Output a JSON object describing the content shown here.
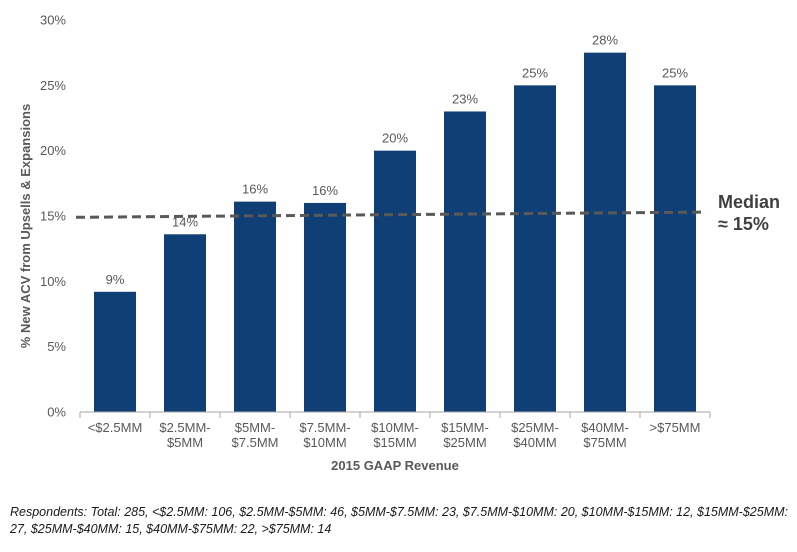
{
  "chart_data": {
    "type": "bar",
    "categories": [
      [
        "<$2.5MM"
      ],
      [
        "$2.5MM-",
        "$5MM"
      ],
      [
        "$5MM-",
        "$7.5MM"
      ],
      [
        "$7.5MM-",
        "$10MM"
      ],
      [
        "$10MM-",
        "$15MM"
      ],
      [
        "$15MM-",
        "$25MM"
      ],
      [
        "$25MM-",
        "$40MM"
      ],
      [
        "$40MM-",
        "$75MM"
      ],
      [
        ">$75MM"
      ]
    ],
    "values": [
      9.2,
      13.6,
      16.1,
      16.0,
      20.0,
      23.0,
      25.0,
      27.5,
      25.0
    ],
    "data_labels": [
      "9%",
      "14%",
      "16%",
      "16%",
      "20%",
      "23%",
      "25%",
      "28%",
      "25%"
    ],
    "xlabel": "2015 GAAP Revenue",
    "ylabel": "% New ACV from Upsells & Expansions",
    "ylim": [
      0,
      30
    ],
    "yticks": [
      0,
      5,
      10,
      15,
      20,
      25,
      30
    ],
    "ytick_labels": [
      "0%",
      "5%",
      "10%",
      "15%",
      "20%",
      "25%",
      "30%"
    ],
    "grid": false,
    "bar_color": "#0f3f75",
    "median_line": {
      "start_value": 14.9,
      "end_value": 15.3,
      "style": "dashed",
      "color": "#595959",
      "label_lines": [
        "Median",
        "≈ 15%"
      ]
    }
  },
  "footnote": "Respondents: Total: 285, <$2.5MM: 106, $2.5MM-$5MM: 46, $5MM-$7.5MM: 23, $7.5MM-$10MM: 20, $10MM-$15MM: 12, $15MM-$25MM: 27, $25MM-$40MM: 15, $40MM-$75MM: 22, >$75MM: 14"
}
